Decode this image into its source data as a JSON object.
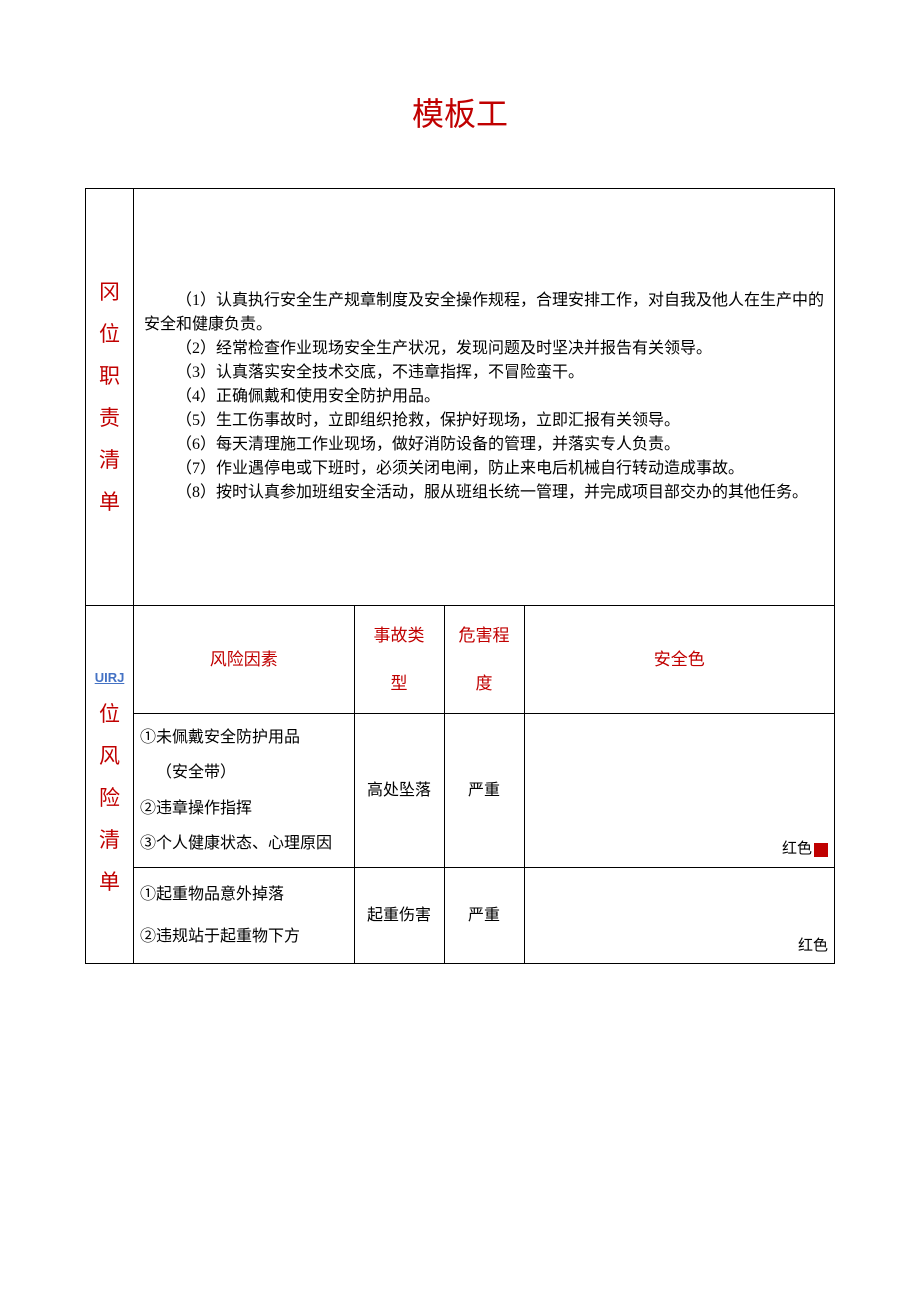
{
  "title": "模板工",
  "colors": {
    "accent": "#c00000",
    "link": "#4472c4",
    "border": "#000000",
    "background": "#ffffff",
    "red_square": "#c00000"
  },
  "section1": {
    "label_chars": [
      "冈",
      "位",
      "职",
      "责",
      "清",
      "单"
    ],
    "duties": [
      "（1）认真执行安全生产规章制度及安全操作规程，合理安排工作，对自我及他人在生产中的安全和健康负责。",
      "（2）经常检查作业现场安全生产状况，发现问题及时坚决并报告有关领导。",
      "（3）认真落实安全技术交底，不违章指挥，不冒险蛮干。",
      "（4）正确佩戴和使用安全防护用品。",
      "（5）生工伤事故时，立即组织抢救，保护好现场，立即汇报有关领导。",
      "（6）每天清理施工作业现场，做好消防设备的管理，并落实专人负责。",
      "（7）作业遇停电或下班时，必须关闭电闸，防止来电后机械自行转动造成事故。",
      "（8）按时认真参加班组安全活动，服从班组长统一管理，并完成项目部交办的其他任务。"
    ]
  },
  "section2": {
    "label_prefix": "UIRJ",
    "label_chars": [
      "位",
      "风",
      "险",
      "清",
      "单"
    ],
    "headers": {
      "risk": "风险因素",
      "type": "事故类\n型",
      "level": "危害程\n度",
      "color": "安全色"
    },
    "rows": [
      {
        "risk_items": [
          "①未佩戴安全防护用品",
          "（安全带）",
          "②违章操作指挥",
          "③个人健康状态、心理原因"
        ],
        "type": "高处坠落",
        "level": "严重",
        "color_label": "红色",
        "has_square": true
      },
      {
        "risk_items": [
          "①起重物品意外掉落",
          "②违规站于起重物下方"
        ],
        "type": "起重伤害",
        "level": "严重",
        "color_label": "红色",
        "has_square": false
      }
    ]
  }
}
